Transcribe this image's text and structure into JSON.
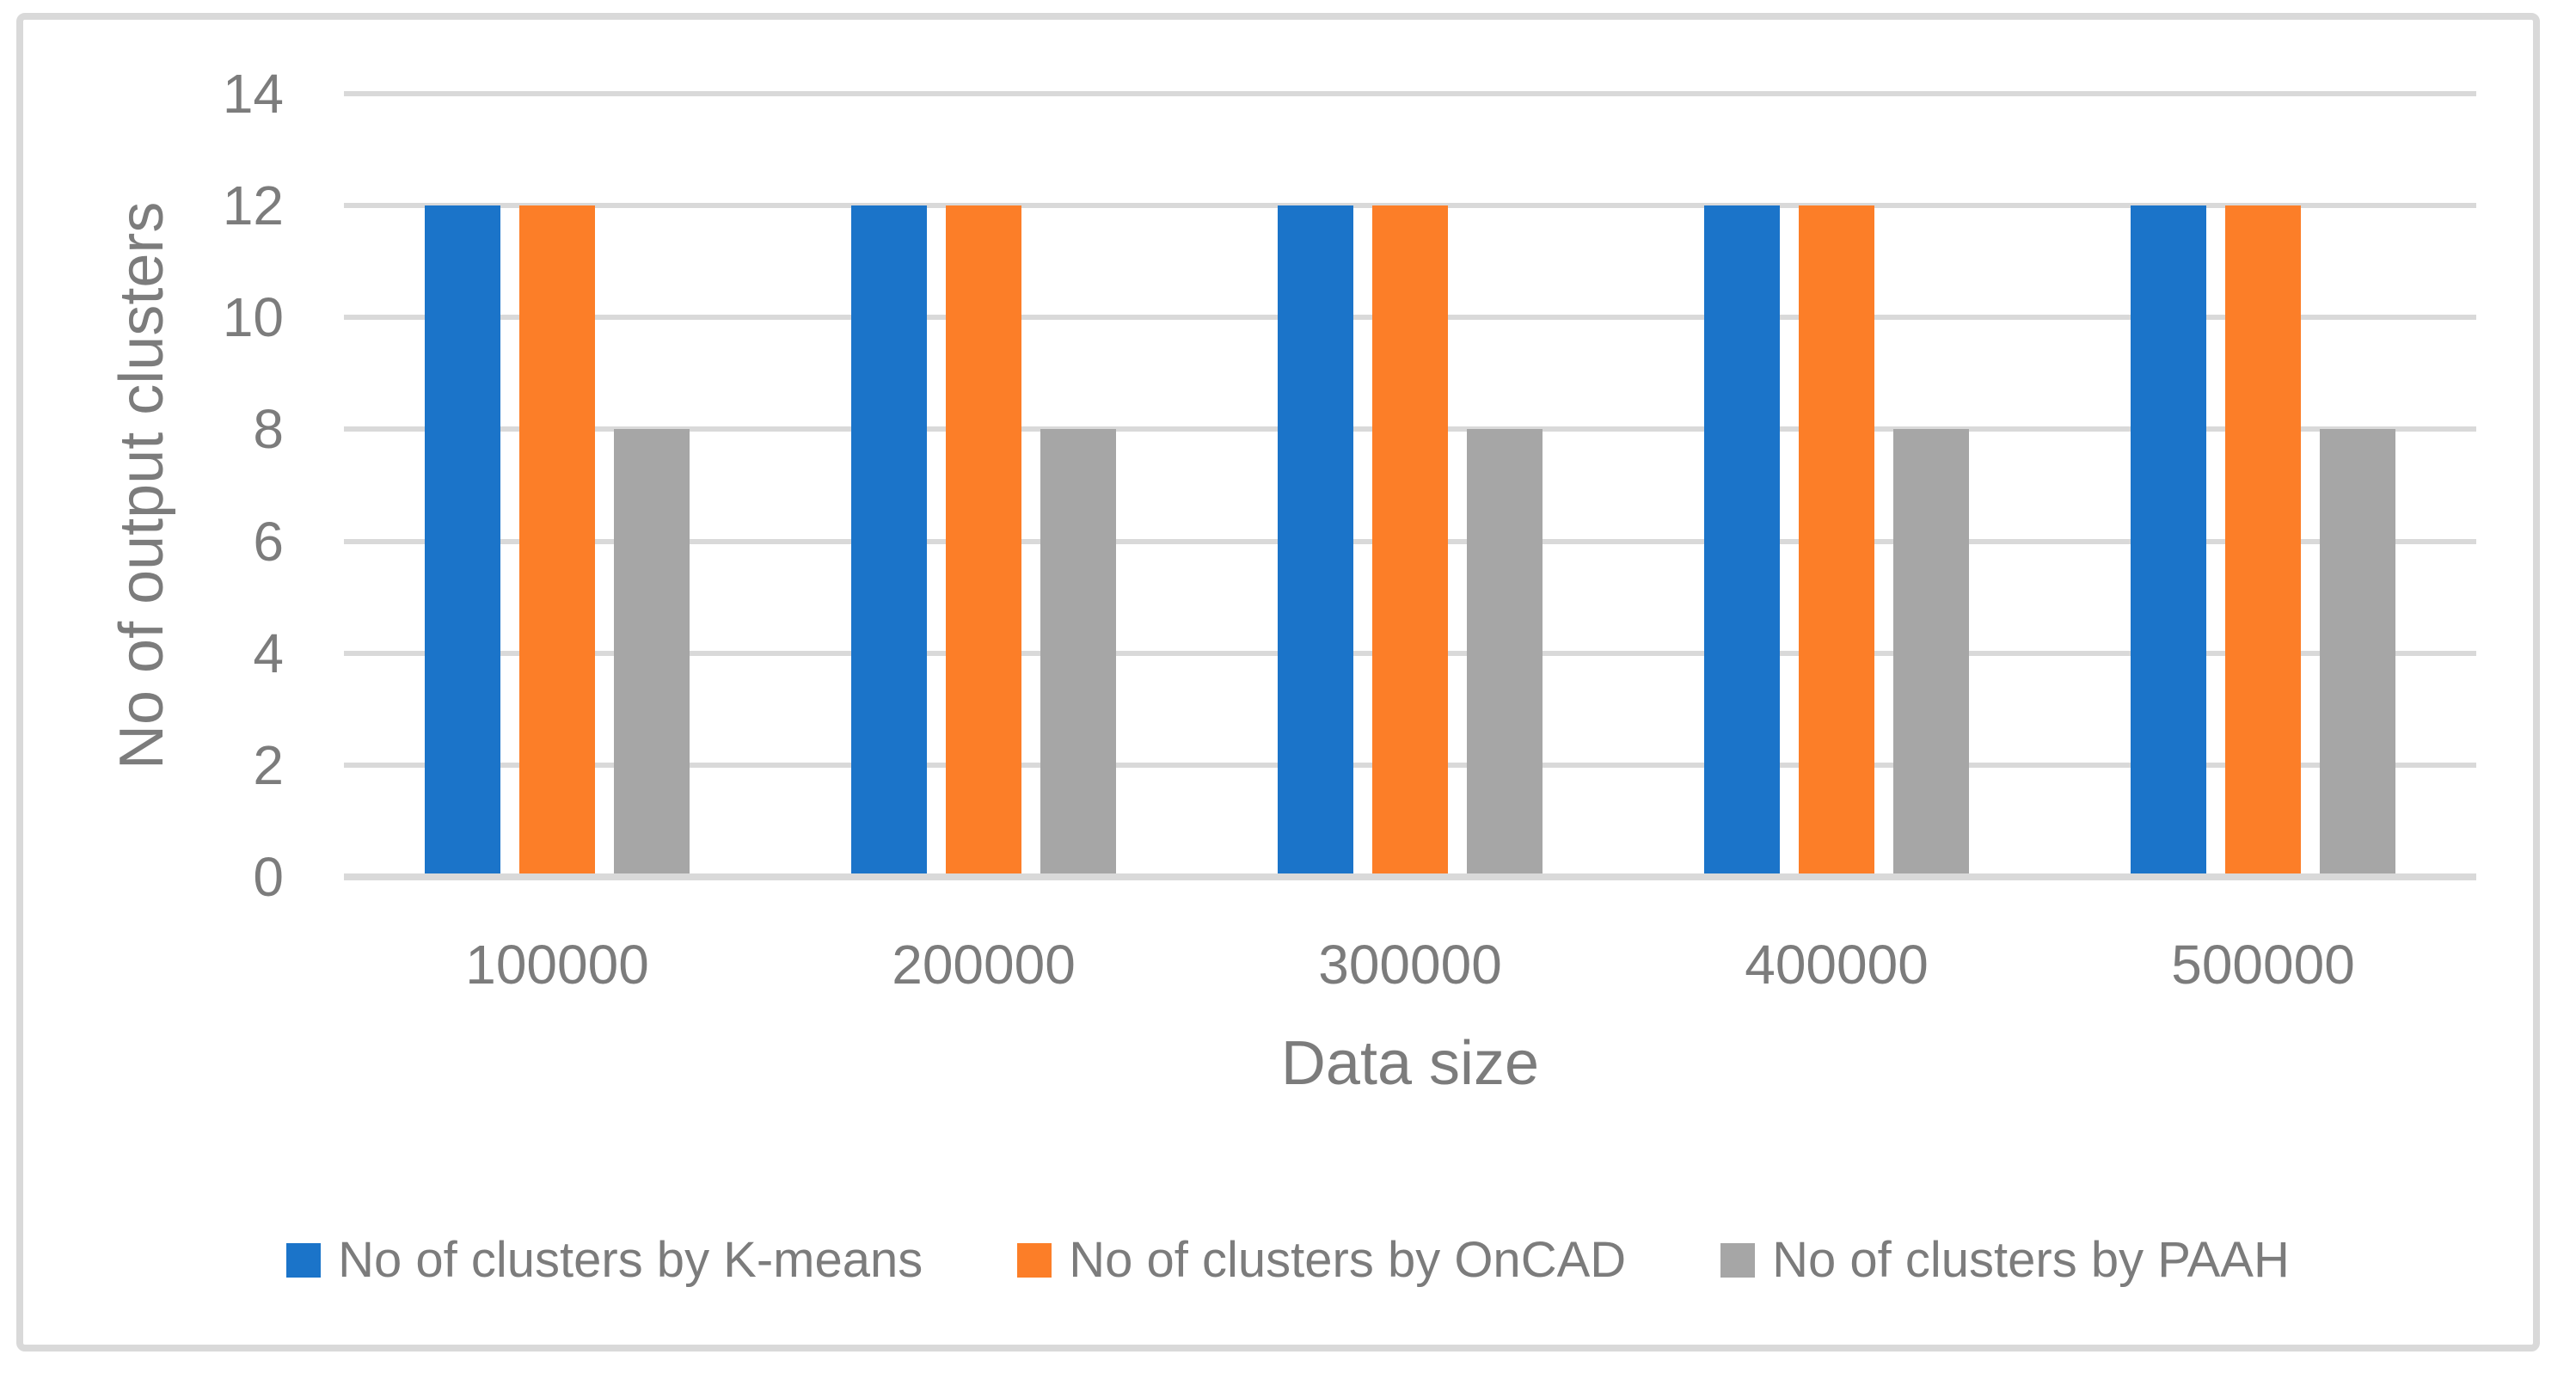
{
  "chart_data": {
    "type": "bar",
    "title": "",
    "xlabel": "Data size",
    "ylabel": "No of output clusters",
    "categories": [
      "100000",
      "200000",
      "300000",
      "400000",
      "500000"
    ],
    "series": [
      {
        "name": "No of clusters by K-means",
        "color": "#1B74C9",
        "values": [
          12,
          12,
          12,
          12,
          12
        ]
      },
      {
        "name": "No of clusters by OnCAD",
        "color": "#FC7E28",
        "values": [
          12,
          12,
          12,
          12,
          12
        ]
      },
      {
        "name": "No of clusters by PAAH",
        "color": "#A6A6A6",
        "values": [
          8,
          8,
          8,
          8,
          8
        ]
      }
    ],
    "ylim": [
      0,
      14
    ],
    "yticks": [
      0,
      2,
      4,
      6,
      8,
      10,
      12,
      14
    ],
    "grid": true,
    "legend_position": "bottom",
    "colors": {
      "gridline": "#D9D9D9",
      "frame_border": "#D9D9D9",
      "axis_text": "#7C7C7C",
      "background": "#FFFFFF"
    }
  }
}
